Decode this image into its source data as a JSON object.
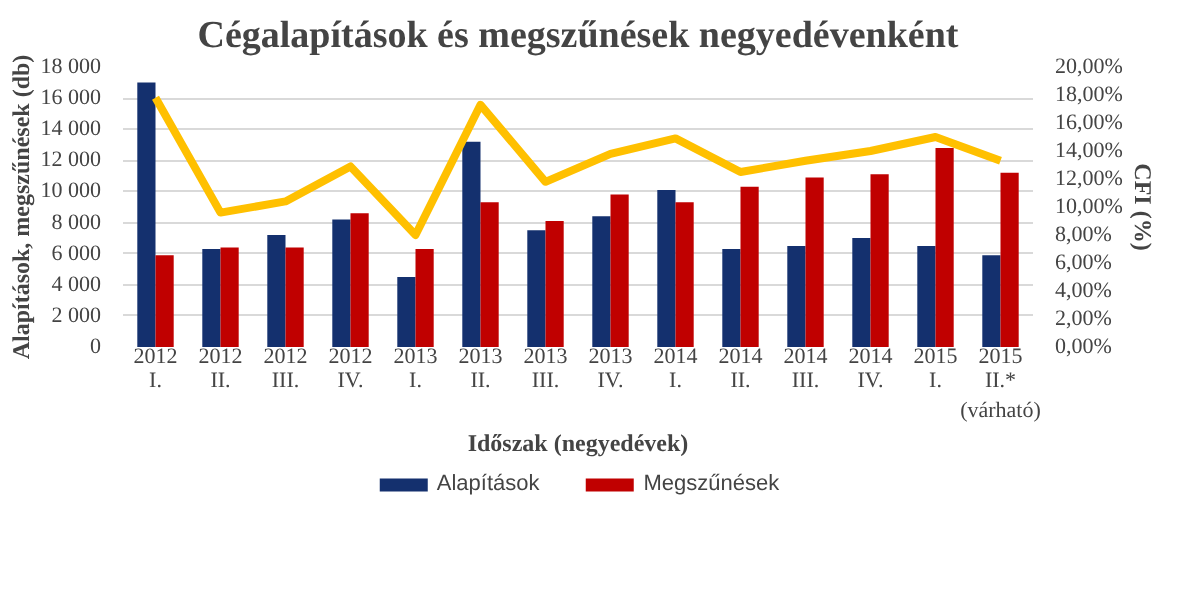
{
  "chart_data": {
    "type": "bar",
    "title": "Cégalapítások és megszűnések negyedévenként",
    "xlabel": "Időszak (negyedévek)",
    "ylabel": "Alapítások, megszűnések (db)",
    "y2label": "CFI (%)",
    "categories": [
      "2012\nI.",
      "2012\nII.",
      "2012\nIII.",
      "2012\nIV.",
      "2013\nI.",
      "2013\nII.",
      "2013\nIII.",
      "2013\nIV.",
      "2014\nI.",
      "2014\nII.",
      "2014\nIII.",
      "2014\nIV.",
      "2015\nI.",
      "2015\nII.*\n(várható)"
    ],
    "series": [
      {
        "name": "Alapítások",
        "color": "#14306e",
        "values": [
          17000,
          6300,
          7200,
          8200,
          4500,
          13200,
          7500,
          8400,
          10100,
          6300,
          6500,
          7000,
          6500,
          5900
        ]
      },
      {
        "name": "Megszűnések",
        "color": "#c00000",
        "values": [
          5900,
          6400,
          6400,
          8600,
          6300,
          9300,
          8100,
          9800,
          9300,
          10300,
          10900,
          11100,
          12800,
          11200
        ]
      },
      {
        "type": "line",
        "axis": "y2",
        "color": "#ffc000",
        "values": [
          17.8,
          9.6,
          10.4,
          12.9,
          8.0,
          17.3,
          11.8,
          13.8,
          14.9,
          12.5,
          13.3,
          14.0,
          15.0,
          13.3
        ]
      }
    ],
    "ylim": [
      0,
      18000
    ],
    "yticks": [
      {
        "value": 0,
        "label": "0"
      },
      {
        "value": 2000,
        "label": "2 000"
      },
      {
        "value": 4000,
        "label": "4 000"
      },
      {
        "value": 6000,
        "label": "6 000"
      },
      {
        "value": 8000,
        "label": "8 000"
      },
      {
        "value": 10000,
        "label": "10 000"
      },
      {
        "value": 12000,
        "label": "12 000"
      },
      {
        "value": 14000,
        "label": "14 000"
      },
      {
        "value": 16000,
        "label": "16 000"
      },
      {
        "value": 18000,
        "label": "18 000"
      }
    ],
    "y2lim": [
      0,
      20
    ],
    "y2ticks": [
      {
        "value": 0,
        "label": "0,00%"
      },
      {
        "value": 2,
        "label": "2,00%"
      },
      {
        "value": 4,
        "label": "4,00%"
      },
      {
        "value": 6,
        "label": "6,00%"
      },
      {
        "value": 8,
        "label": "8,00%"
      },
      {
        "value": 10,
        "label": "10,00%"
      },
      {
        "value": 12,
        "label": "12,00%"
      },
      {
        "value": 14,
        "label": "14,00%"
      },
      {
        "value": 16,
        "label": "16,00%"
      },
      {
        "value": 18,
        "label": "18,00%"
      },
      {
        "value": 20,
        "label": "20,00%"
      }
    ],
    "grid": "y",
    "legend": "bottom"
  }
}
